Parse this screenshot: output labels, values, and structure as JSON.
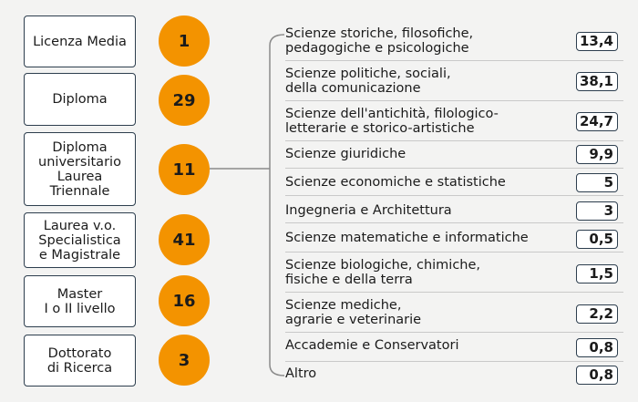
{
  "left_items": [
    {
      "label": "Licenza Media",
      "value": "1"
    },
    {
      "label": "Diploma",
      "value": "29"
    },
    {
      "label": "Diploma\nuniversitario\nLaurea\nTriennale",
      "value": "11"
    },
    {
      "label": "Laurea v.o.\nSpecialistica\ne Magistrale",
      "value": "41"
    },
    {
      "label": "Master\nI o II livello",
      "value": "16"
    },
    {
      "label": "Dottorato\ndi Ricerca",
      "value": "3"
    }
  ],
  "right_items": [
    {
      "label": "Scienze storiche, filosofiche,\npedagogiche e psicologiche",
      "value": "13,4"
    },
    {
      "label": "Scienze politiche, sociali,\ndella comunicazione",
      "value": "38,1"
    },
    {
      "label": "Scienze dell'antichità, filologico-\nletterarie e storico-artistiche",
      "value": "24,7"
    },
    {
      "label": "Scienze giuridiche",
      "value": "9,9"
    },
    {
      "label": "Scienze economiche e statistiche",
      "value": "5"
    },
    {
      "label": "Ingegneria e Architettura",
      "value": "3"
    },
    {
      "label": "Scienze matematiche e informatiche",
      "value": "0,5"
    },
    {
      "label": "Scienze biologiche, chimiche,\nfisiche e della terra",
      "value": "1,5"
    },
    {
      "label": "Scienze mediche,\nagrarie e veterinarie",
      "value": "2,2"
    },
    {
      "label": "Accademie e Conservatori",
      "value": "0,8"
    },
    {
      "label": "Altro",
      "value": "0,8"
    }
  ],
  "colors": {
    "circle": "#f39300",
    "box_border": "#2d3e4e",
    "background": "#f3f3f2"
  }
}
